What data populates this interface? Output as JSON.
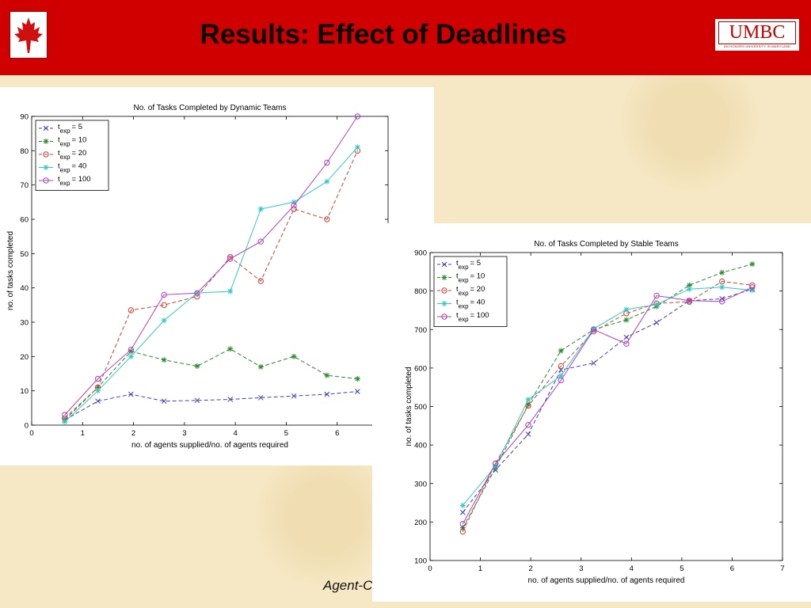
{
  "slide": {
    "title": "Results: Effect of Deadlines",
    "logo_text": "UMBC",
    "logo_subtext": "AN HONORS UNIVERSITY IN MARYLAND",
    "footer_text": "Agent-C",
    "colors": {
      "header": "#d00000",
      "background": "#f6e8c4"
    },
    "icons": [
      "maple-leaf-icon"
    ]
  },
  "chart_data": [
    {
      "type": "line",
      "title": "No. of Tasks Completed by Dynamic Teams",
      "xlabel": "no. of agents supplied/no. of agents required",
      "ylabel": "no. of tasks completed",
      "xlim": [
        0,
        7
      ],
      "ylim": [
        0,
        90
      ],
      "xticks": [
        0,
        1,
        2,
        3,
        4,
        5,
        6
      ],
      "yticks": [
        0,
        10,
        20,
        30,
        40,
        50,
        60,
        70,
        80,
        90
      ],
      "legend_position": "top-left",
      "grid": false,
      "x": [
        0.65,
        1.3,
        1.95,
        2.6,
        3.25,
        3.9,
        4.5,
        5.15,
        5.8,
        6.4
      ],
      "series": [
        {
          "name": "t_exp = 5",
          "label_main": "t",
          "label_sub": "exp",
          "label_tail": "= 5",
          "color": "#4040c0",
          "marker": "x",
          "values": [
            1.5,
            7,
            9,
            7,
            7.2,
            7.5,
            8,
            8.5,
            9,
            9.8
          ]
        },
        {
          "name": "t_exp = 10",
          "label_main": "t",
          "label_sub": "exp",
          "label_tail": "= 10",
          "color": "#2a8a2a",
          "marker": "star",
          "values": [
            1.5,
            11,
            21.5,
            19,
            17.2,
            22.2,
            17,
            20,
            14.5,
            13.5
          ]
        },
        {
          "name": "t_exp = 20",
          "label_main": "t",
          "label_sub": "exp",
          "label_tail": "= 20",
          "color": "#d04030",
          "marker": "circle",
          "values": [
            2,
            11,
            33.5,
            35,
            37.5,
            49,
            42,
            63,
            60,
            80
          ]
        },
        {
          "name": "t_exp = 40",
          "label_main": "t",
          "label_sub": "exp",
          "label_tail": "= 40",
          "color": "#30c8c8",
          "marker": "star",
          "values": [
            1,
            10,
            20,
            30.5,
            38.5,
            39,
            63,
            65,
            71,
            81
          ]
        },
        {
          "name": "t_exp = 100",
          "label_main": "t",
          "label_sub": "exp",
          "label_tail": "= 100",
          "color": "#b040c0",
          "marker": "circle",
          "values": [
            3,
            13.5,
            22,
            38,
            38.5,
            48.5,
            53.5,
            64,
            76.5,
            90
          ]
        }
      ]
    },
    {
      "type": "line",
      "title": "No. of Tasks Completed by Stable Teams",
      "xlabel": "no. of agents supplied/no. of agents required",
      "ylabel": "no. of tasks completed",
      "xlim": [
        0,
        7
      ],
      "ylim": [
        100,
        900
      ],
      "xticks": [
        0,
        1,
        2,
        3,
        4,
        5,
        6,
        7
      ],
      "yticks": [
        100,
        200,
        300,
        400,
        500,
        600,
        700,
        800,
        900
      ],
      "legend_position": "top-left",
      "grid": false,
      "x": [
        0.65,
        1.3,
        1.95,
        2.6,
        3.25,
        3.9,
        4.5,
        5.15,
        5.8,
        6.4
      ],
      "series": [
        {
          "name": "t_exp = 5",
          "label_main": "t",
          "label_sub": "exp",
          "label_tail": "= 5",
          "color": "#4040c0",
          "marker": "x",
          "values": [
            225,
            335,
            428,
            595,
            613,
            680,
            718,
            775,
            780,
            805
          ]
        },
        {
          "name": "t_exp = 10",
          "label_main": "t",
          "label_sub": "exp",
          "label_tail": "= 10",
          "color": "#2a8a2a",
          "marker": "star",
          "values": [
            185,
            340,
            505,
            645,
            700,
            725,
            760,
            815,
            848,
            870
          ]
        },
        {
          "name": "t_exp = 20",
          "label_main": "t",
          "label_sub": "exp",
          "label_tail": "= 20",
          "color": "#d04030",
          "marker": "circle",
          "values": [
            175,
            352,
            502,
            605,
            695,
            742,
            768,
            772,
            825,
            815
          ]
        },
        {
          "name": "t_exp = 40",
          "label_main": "t",
          "label_sub": "exp",
          "label_tail": "= 40",
          "color": "#30c8c8",
          "marker": "star",
          "values": [
            243,
            345,
            518,
            580,
            702,
            752,
            765,
            805,
            810,
            802
          ]
        },
        {
          "name": "t_exp = 100",
          "label_main": "t",
          "label_sub": "exp",
          "label_tail": "= 100",
          "color": "#b040c0",
          "marker": "circle",
          "values": [
            195,
            352,
            452,
            568,
            700,
            663,
            788,
            775,
            773,
            810
          ]
        }
      ]
    }
  ]
}
